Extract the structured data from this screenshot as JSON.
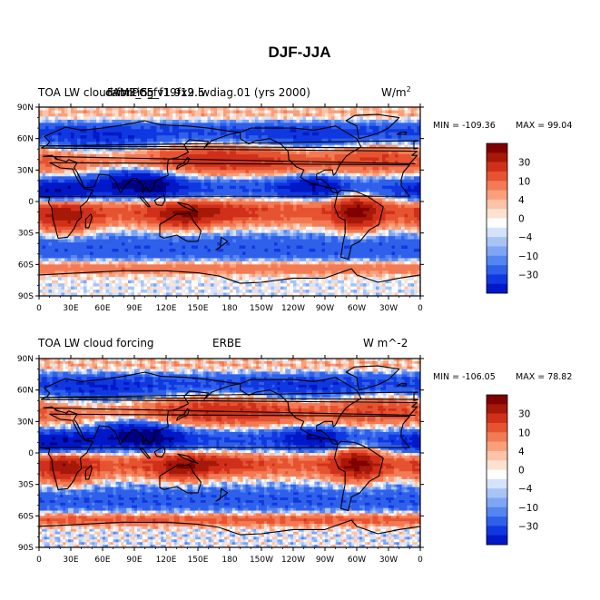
{
  "figure": {
    "title": "DJF-JJA"
  },
  "palette": [
    "#000080",
    "#0018c8",
    "#1038e0",
    "#2f60ea",
    "#5585f0",
    "#7ea6f4",
    "#a8c4f7",
    "#d4e3fb",
    "#fdfdfd",
    "#fde2d2",
    "#fcc3a8",
    "#f9a07b",
    "#f27a55",
    "#e65330",
    "#d0301b",
    "#a61808",
    "#800000"
  ],
  "chart_data": [
    {
      "type": "heatmap",
      "title": "TOA LW cloud forcing",
      "case_label": "cam3_5_fv1.9x2.5",
      "overlap_label": "FAMIPC5_f19f19.lwdiag.01 (yrs 2000)",
      "units": "W/m",
      "units_sup": "2",
      "min_label": "MIN = -109.36",
      "max_label": "MAX =  99.04",
      "x_ticks": [
        "0",
        "30E",
        "60E",
        "90E",
        "120E",
        "150E",
        "180",
        "150W",
        "120W",
        "90W",
        "60W",
        "30W",
        "0"
      ],
      "y_ticks": [
        "90N",
        "60N",
        "30N",
        "0",
        "30S",
        "60S",
        "90S"
      ],
      "levels": [
        "30",
        "10",
        "4",
        "0",
        "-4",
        "-10",
        "-30"
      ],
      "seed": 7
    },
    {
      "type": "heatmap",
      "title": "TOA LW cloud forcing",
      "case_label": "ERBE",
      "units": "W m^-2",
      "min_label": "MIN = -106.05",
      "max_label": "MAX =  78.82",
      "x_ticks": [
        "0",
        "30E",
        "60E",
        "90E",
        "120E",
        "150E",
        "180",
        "150W",
        "120W",
        "90W",
        "60W",
        "30W",
        "0"
      ],
      "y_ticks": [
        "90N",
        "60N",
        "30N",
        "0",
        "30S",
        "60S",
        "90S"
      ],
      "levels": [
        "30",
        "10",
        "4",
        "0",
        "-4",
        "-10",
        "-30"
      ],
      "seed": 13
    }
  ]
}
